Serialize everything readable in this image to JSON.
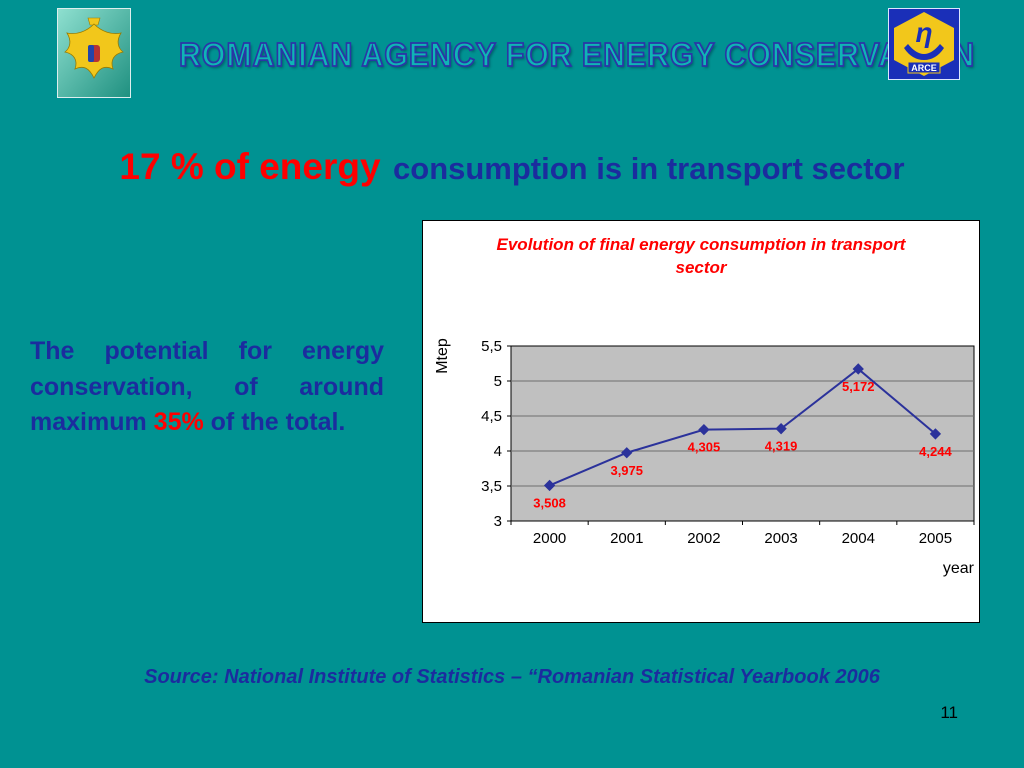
{
  "slide": {
    "header": "ROMANIAN AGENCY FOR ENERGY CONSERVATION",
    "title": {
      "red": "17 % of energy",
      "blue": "consumption is in transport sector"
    },
    "body": {
      "pre": "The potential for energy conservation, of around maximum ",
      "highlight": "35%",
      "post": " of the total."
    },
    "source": "Source: National Institute of Statistics – “Romanian Statistical Yearbook 2006",
    "page_number": "11",
    "logos": {
      "arce_symbol": "η",
      "arce_label": "ARCE"
    }
  },
  "chart_data": {
    "type": "line",
    "title": "Evolution of final energy consumption in transport sector",
    "categories": [
      "2000",
      "2001",
      "2002",
      "2003",
      "2004",
      "2005"
    ],
    "values": [
      3.508,
      3.975,
      4.305,
      4.319,
      5.172,
      4.244
    ],
    "point_labels": [
      "3,508",
      "3,975",
      "4,305",
      "4,319",
      "5,172",
      "4,244"
    ],
    "xlabel": "year",
    "ylabel": "Mtep",
    "ylim": [
      3,
      5.5
    ],
    "ytick_step": 0.5,
    "ytick_labels": [
      "3",
      "3,5",
      "4",
      "4,5",
      "5",
      "5,5"
    ],
    "grid": true,
    "legend": false,
    "line_color": "#2B329B",
    "label_color": "#FF0000",
    "plot_bg": "#C0C0C0",
    "grid_color": "#6E6E6E"
  }
}
